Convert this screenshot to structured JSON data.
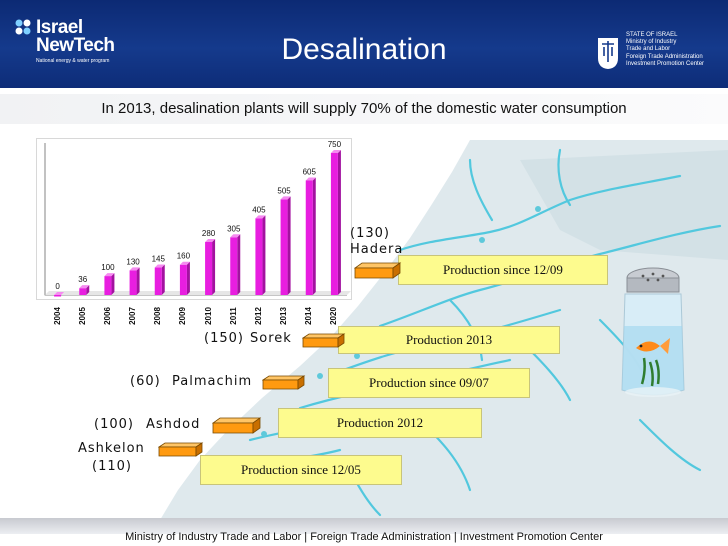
{
  "header": {
    "logo_line1": "Israel",
    "logo_line2": "NewTech",
    "logo_tagline": "National energy & water program",
    "title": "Desalination",
    "agency_lines": [
      "STATE OF ISRAEL",
      "Ministry of Industry",
      "Trade and Labor",
      "Foreign Trade Administration",
      "Investment Promotion Center"
    ]
  },
  "subtitle": "In 2013, desalination plants will supply 70% of the domestic water consumption",
  "colors": {
    "header": "#153a8c",
    "bar": "#e81ee0",
    "production_box": "#fdfb8e",
    "plant_marker": "#ff9a10",
    "sea": "#ffffff",
    "land": "#dde8ec",
    "rivers": "#4fc6dc"
  },
  "chart_data": {
    "type": "bar",
    "categories": [
      "2004",
      "2005",
      "2006",
      "2007",
      "2008",
      "2009",
      "2010",
      "2011",
      "2012",
      "2013",
      "2014",
      "2020"
    ],
    "values": [
      0,
      36,
      100,
      130,
      145,
      160,
      280,
      305,
      405,
      505,
      605,
      750
    ],
    "data_labels": [
      "0",
      "36",
      "100",
      "130",
      "145",
      "160",
      "280",
      "305",
      "405",
      "505",
      "605",
      "750"
    ],
    "ylim": [
      0,
      750
    ],
    "grid": false,
    "legend": "none"
  },
  "plants": [
    {
      "capacity": "(130)",
      "name": "Hadera",
      "production": "Production since 12/09"
    },
    {
      "capacity": "(150)",
      "name": "Sorek",
      "production": "Production 2013"
    },
    {
      "capacity": "(60)",
      "name": "Palmachim",
      "production": "Production since  09/07"
    },
    {
      "capacity": "(100)",
      "name": "Ashdod",
      "production": "Production 2012"
    },
    {
      "capacity": "(110)",
      "name": "Ashkelon",
      "production": "Production since 12/05"
    }
  ],
  "footer": "Ministry of Industry Trade and Labor  |  Foreign Trade Administration  |  Investment Promotion Center"
}
